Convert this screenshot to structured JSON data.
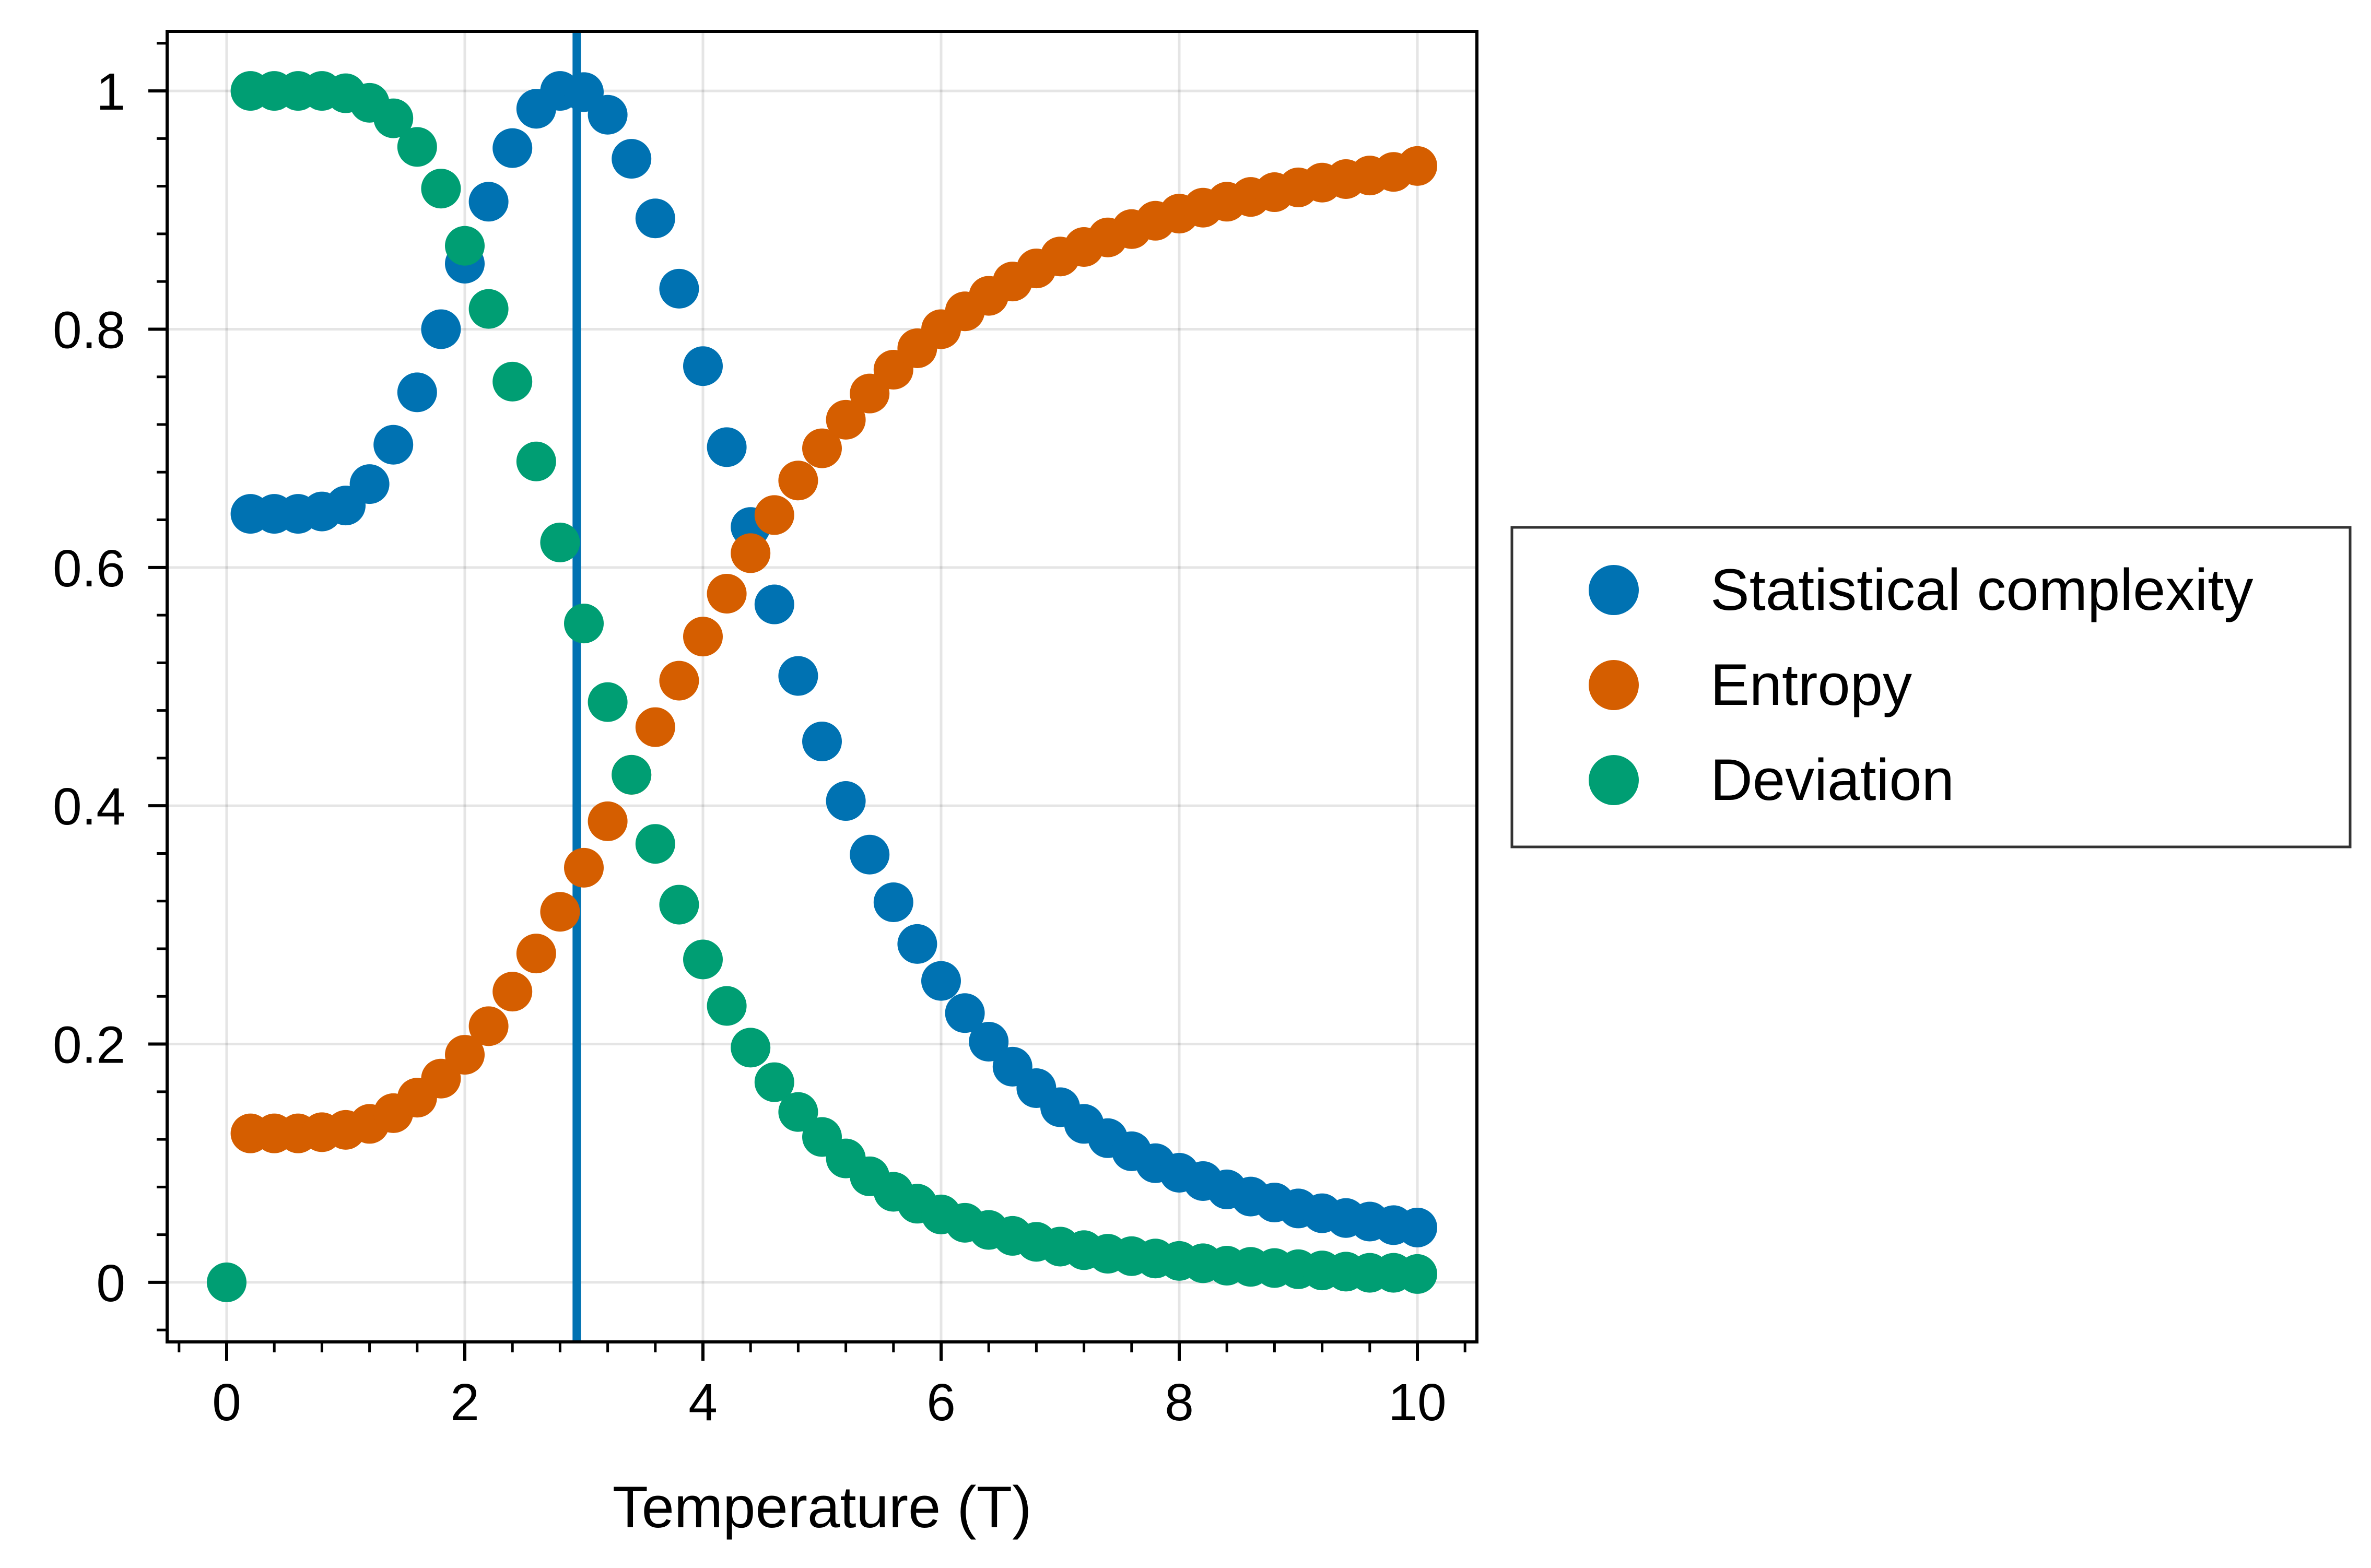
{
  "chart_data": {
    "type": "scatter",
    "xlabel": "Temperature (T)",
    "ylabel": "",
    "xlim": [
      -0.5,
      10.5
    ],
    "ylim": [
      -0.05,
      1.05
    ],
    "xticks": [
      "0",
      "2",
      "4",
      "6",
      "8",
      "10"
    ],
    "yticks": [
      "0",
      "0.2",
      "0.4",
      "0.6",
      "0.8",
      "1"
    ],
    "grid": true,
    "legend_position": "right-outside",
    "vline": {
      "x": 2.94,
      "color": "#0072B2"
    },
    "series": [
      {
        "name": "Statistical complexity",
        "color": "#0072B2",
        "points": [
          [
            0.2,
            0.645
          ],
          [
            0.4,
            0.645
          ],
          [
            0.6,
            0.645
          ],
          [
            0.8,
            0.647
          ],
          [
            1.0,
            0.652
          ],
          [
            1.2,
            0.67
          ],
          [
            1.4,
            0.703
          ],
          [
            1.6,
            0.747
          ],
          [
            1.8,
            0.8
          ],
          [
            2.0,
            0.855
          ],
          [
            2.2,
            0.907
          ],
          [
            2.4,
            0.952
          ],
          [
            2.6,
            0.985
          ],
          [
            2.8,
            1.0
          ],
          [
            3.0,
            0.999
          ],
          [
            3.2,
            0.98
          ],
          [
            3.4,
            0.943
          ],
          [
            3.6,
            0.893
          ],
          [
            3.8,
            0.834
          ],
          [
            4.0,
            0.769
          ],
          [
            4.2,
            0.701
          ],
          [
            4.4,
            0.634
          ],
          [
            4.6,
            0.569
          ],
          [
            4.8,
            0.509
          ],
          [
            5.0,
            0.454
          ],
          [
            5.2,
            0.404
          ],
          [
            5.4,
            0.359
          ],
          [
            5.6,
            0.319
          ],
          [
            5.8,
            0.284
          ],
          [
            6.0,
            0.253
          ],
          [
            6.2,
            0.226
          ],
          [
            6.4,
            0.202
          ],
          [
            6.6,
            0.181
          ],
          [
            6.8,
            0.163
          ],
          [
            7.0,
            0.147
          ],
          [
            7.2,
            0.133
          ],
          [
            7.4,
            0.121
          ],
          [
            7.6,
            0.11
          ],
          [
            7.8,
            0.1
          ],
          [
            8.0,
            0.092
          ],
          [
            8.2,
            0.085
          ],
          [
            8.4,
            0.078
          ],
          [
            8.6,
            0.072
          ],
          [
            8.8,
            0.067
          ],
          [
            9.0,
            0.062
          ],
          [
            9.2,
            0.058
          ],
          [
            9.4,
            0.054
          ],
          [
            9.6,
            0.051
          ],
          [
            9.8,
            0.048
          ],
          [
            10.0,
            0.046
          ]
        ]
      },
      {
        "name": "Entropy",
        "color": "#D55E00",
        "points": [
          [
            0.2,
            0.125
          ],
          [
            0.4,
            0.125
          ],
          [
            0.6,
            0.125
          ],
          [
            0.8,
            0.126
          ],
          [
            1.0,
            0.128
          ],
          [
            1.2,
            0.133
          ],
          [
            1.4,
            0.142
          ],
          [
            1.6,
            0.155
          ],
          [
            1.8,
            0.171
          ],
          [
            2.0,
            0.191
          ],
          [
            2.2,
            0.215
          ],
          [
            2.4,
            0.244
          ],
          [
            2.6,
            0.276
          ],
          [
            2.8,
            0.311
          ],
          [
            3.0,
            0.348
          ],
          [
            3.2,
            0.387
          ],
          [
            3.4,
            0.426
          ],
          [
            3.6,
            0.466
          ],
          [
            3.8,
            0.505
          ],
          [
            4.0,
            0.542
          ],
          [
            4.2,
            0.578
          ],
          [
            4.4,
            0.612
          ],
          [
            4.6,
            0.644
          ],
          [
            4.8,
            0.673
          ],
          [
            5.0,
            0.7
          ],
          [
            5.2,
            0.724
          ],
          [
            5.4,
            0.746
          ],
          [
            5.6,
            0.766
          ],
          [
            5.8,
            0.784
          ],
          [
            6.0,
            0.8
          ],
          [
            6.2,
            0.815
          ],
          [
            6.4,
            0.828
          ],
          [
            6.6,
            0.84
          ],
          [
            6.8,
            0.851
          ],
          [
            7.0,
            0.861
          ],
          [
            7.2,
            0.869
          ],
          [
            7.4,
            0.877
          ],
          [
            7.6,
            0.884
          ],
          [
            7.8,
            0.891
          ],
          [
            8.0,
            0.897
          ],
          [
            8.2,
            0.902
          ],
          [
            8.4,
            0.907
          ],
          [
            8.6,
            0.911
          ],
          [
            8.8,
            0.915
          ],
          [
            9.0,
            0.919
          ],
          [
            9.2,
            0.923
          ],
          [
            9.4,
            0.926
          ],
          [
            9.6,
            0.929
          ],
          [
            9.8,
            0.932
          ],
          [
            10.0,
            0.937
          ]
        ]
      },
      {
        "name": "Deviation",
        "color": "#009E73",
        "points": [
          [
            0.0,
            0.0
          ],
          [
            0.2,
            1.0
          ],
          [
            0.4,
            1.0
          ],
          [
            0.6,
            1.0
          ],
          [
            0.8,
            1.0
          ],
          [
            1.0,
            0.998
          ],
          [
            1.2,
            0.99
          ],
          [
            1.4,
            0.977
          ],
          [
            1.6,
            0.953
          ],
          [
            1.8,
            0.918
          ],
          [
            2.0,
            0.87
          ],
          [
            2.2,
            0.817
          ],
          [
            2.4,
            0.756
          ],
          [
            2.6,
            0.689
          ],
          [
            2.8,
            0.621
          ],
          [
            3.0,
            0.553
          ],
          [
            3.2,
            0.487
          ],
          [
            3.4,
            0.426
          ],
          [
            3.6,
            0.368
          ],
          [
            3.8,
            0.317
          ],
          [
            4.0,
            0.271
          ],
          [
            4.2,
            0.232
          ],
          [
            4.4,
            0.197
          ],
          [
            4.6,
            0.168
          ],
          [
            4.8,
            0.143
          ],
          [
            5.0,
            0.122
          ],
          [
            5.2,
            0.104
          ],
          [
            5.4,
            0.089
          ],
          [
            5.6,
            0.076
          ],
          [
            5.8,
            0.066
          ],
          [
            6.0,
            0.057
          ],
          [
            6.2,
            0.05
          ],
          [
            6.4,
            0.044
          ],
          [
            6.6,
            0.039
          ],
          [
            6.8,
            0.034
          ],
          [
            7.0,
            0.03
          ],
          [
            7.2,
            0.027
          ],
          [
            7.4,
            0.024
          ],
          [
            7.6,
            0.022
          ],
          [
            7.8,
            0.02
          ],
          [
            8.0,
            0.018
          ],
          [
            8.2,
            0.016
          ],
          [
            8.4,
            0.014
          ],
          [
            8.6,
            0.013
          ],
          [
            8.8,
            0.012
          ],
          [
            9.0,
            0.011
          ],
          [
            9.2,
            0.01
          ],
          [
            9.4,
            0.009
          ],
          [
            9.6,
            0.008
          ],
          [
            9.8,
            0.008
          ],
          [
            10.0,
            0.007
          ]
        ]
      }
    ]
  }
}
